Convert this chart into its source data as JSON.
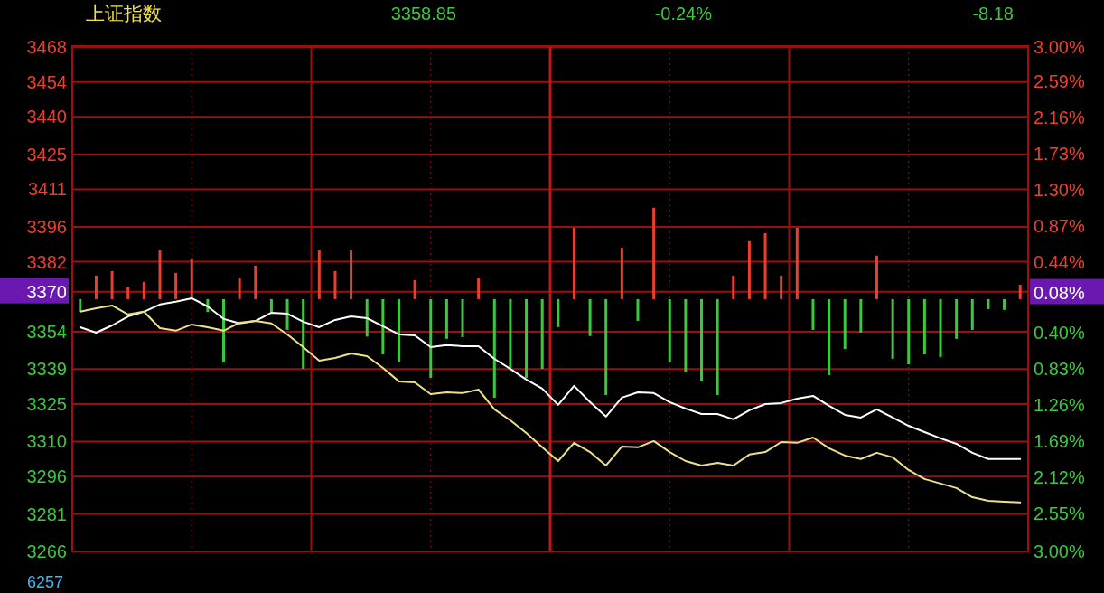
{
  "chart_data": {
    "type": "line",
    "title": "上证指数",
    "annotations": [
      "3358.85",
      "-0.24%",
      "-8.18",
      "6257"
    ],
    "categories": [
      null,
      null,
      null,
      null,
      null,
      null,
      null,
      null,
      null,
      null,
      null,
      null,
      null,
      null,
      null,
      null,
      null,
      null,
      null,
      null,
      null,
      null,
      null,
      null,
      null,
      null,
      null,
      null,
      null,
      null,
      null,
      null,
      null,
      null,
      null,
      null,
      null,
      null,
      null,
      null,
      null,
      null,
      null,
      null,
      null,
      null,
      null,
      null,
      null,
      null,
      null,
      null,
      null,
      null,
      null,
      null,
      null,
      null,
      null,
      null
    ],
    "ylim": [
      3266,
      3468
    ],
    "yticks": [
      3468,
      3454,
      3440,
      3425,
      3411,
      3396,
      3382,
      3370,
      3354,
      3339,
      3325,
      3310,
      3296,
      3281,
      3266
    ],
    "y2lim": [
      -3,
      3
    ],
    "y2ticks": [
      {
        "value": 3,
        "label": "3.00%"
      },
      {
        "value": 2.59,
        "label": "2.59%"
      },
      {
        "value": 2.16,
        "label": "2.16%"
      },
      {
        "value": 1.73,
        "label": "1.73%"
      },
      {
        "value": 1.3,
        "label": "1.30%"
      },
      {
        "value": 0.87,
        "label": "0.87%"
      },
      {
        "value": 0.44,
        "label": "0.44%"
      },
      {
        "value": 0.08,
        "label": "0.08%"
      },
      {
        "value": -0.4,
        "label": "0.40%"
      },
      {
        "value": -0.83,
        "label": "0.83%"
      },
      {
        "value": -1.26,
        "label": "1.26%"
      },
      {
        "value": -1.69,
        "label": "1.69%"
      },
      {
        "value": -2.12,
        "label": "2.12%"
      },
      {
        "value": -2.55,
        "label": "2.55%"
      },
      {
        "value": -3,
        "label": "3.00%"
      }
    ],
    "grid": true,
    "line_style": "solid",
    "series": [
      {
        "type": "bar",
        "base": [
          3367.03,
          3367.03,
          3367.03,
          3367.03,
          3367.03,
          3367.03,
          3367.03,
          3367.03,
          3367.03,
          3367.03,
          3367.03,
          3367.03,
          3367.03,
          3367.03,
          3367.03,
          3367.03,
          3367.03,
          3367.03,
          3367.03,
          3367.03,
          3367.03,
          3367.03,
          3367.03,
          3367.03,
          3367.03,
          3367.03,
          3367.03,
          3367.03,
          3367.03,
          3367.03,
          3367.03,
          3367.03,
          3367.03,
          3367.03,
          3367.03,
          3367.03,
          3367.03,
          3367.03,
          3367.03,
          3367.03,
          3367.03,
          3367.03,
          3367.03,
          3367.03,
          3367.03,
          3367.03,
          3367.03,
          3367.03,
          3367.03,
          3367.03,
          3367.03,
          3367.03,
          3367.03,
          3367.03,
          3367.03,
          3367.03,
          3367.03,
          3367.03,
          3367.03,
          3367.03
        ],
        "values": [
          -5.1,
          9.4,
          11.2,
          4.7,
          6.9,
          19.5,
          10.5,
          16.3,
          -5.1,
          -25.3,
          8.3,
          13.4,
          -5.1,
          -12.3,
          -27.9,
          19.5,
          11.2,
          19.5,
          -15,
          -22.1,
          -25,
          7.6,
          -31.5,
          -15.9,
          -15.2,
          8.3,
          -39.5,
          -27.5,
          -31.5,
          -27.9,
          -11.2,
          28.6,
          -14.8,
          -38.4,
          20.6,
          -8.7,
          36.6,
          -25,
          -29.3,
          -32.9,
          -38.4,
          9.4,
          23.2,
          26.4,
          9.4,
          28.6,
          -12.3,
          -30.4,
          -20,
          -13.4,
          17.4,
          -23.9,
          -26.1,
          -22.1,
          -23.2,
          -15.9,
          -12.3,
          -4,
          -4.3,
          5.8
        ],
        "colors": [
          "#3cc83c",
          "#e8402c",
          "#e8402c",
          "#e8402c",
          "#e8402c",
          "#e8402c",
          "#e8402c",
          "#e8402c",
          "#3cc83c",
          "#3cc83c",
          "#e8402c",
          "#e8402c",
          "#3cc83c",
          "#3cc83c",
          "#3cc83c",
          "#e8402c",
          "#e8402c",
          "#e8402c",
          "#3cc83c",
          "#3cc83c",
          "#3cc83c",
          "#e8402c",
          "#3cc83c",
          "#3cc83c",
          "#3cc83c",
          "#e8402c",
          "#3cc83c",
          "#3cc83c",
          "#3cc83c",
          "#3cc83c",
          "#3cc83c",
          "#e8402c",
          "#3cc83c",
          "#3cc83c",
          "#e8402c",
          "#3cc83c",
          "#e8402c",
          "#3cc83c",
          "#3cc83c",
          "#3cc83c",
          "#3cc83c",
          "#e8402c",
          "#e8402c",
          "#e8402c",
          "#e8402c",
          "#e8402c",
          "#3cc83c",
          "#3cc83c",
          "#3cc83c",
          "#3cc83c",
          "#e8402c",
          "#3cc83c",
          "#3cc83c",
          "#3cc83c",
          "#3cc83c",
          "#3cc83c",
          "#3cc83c",
          "#3cc83c",
          "#3cc83c",
          "#e8402c"
        ]
      },
      {
        "color": "#ffffff",
        "values": [
          3355.8,
          3353.6,
          3356.5,
          3360.1,
          3362.0,
          3364.9,
          3366.0,
          3367.4,
          3364.1,
          3359.1,
          3357.3,
          3358.3,
          3361.6,
          3361.2,
          3358.0,
          3355.8,
          3358.7,
          3360.1,
          3359.4,
          3356.2,
          3352.9,
          3352.5,
          3347.8,
          3348.6,
          3348.2,
          3348.2,
          3343.1,
          3339.1,
          3334.8,
          3331.2,
          3324.7,
          3332.3,
          3325.8,
          3320.0,
          3327.6,
          3329.7,
          3329.4,
          3325.8,
          3323.2,
          3321.0,
          3321.0,
          3318.9,
          3322.5,
          3325.0,
          3325.4,
          3327.2,
          3328.3,
          3324.3,
          3320.7,
          3319.6,
          3322.9,
          3319.6,
          3316.3,
          3313.8,
          3311.3,
          3309.1,
          3305.5,
          3303.0,
          3303.0,
          3303.0
        ]
      },
      {
        "color": "#eee08a",
        "values": [
          3362.0,
          3363.4,
          3364.5,
          3360.9,
          3362.0,
          3355.4,
          3354.4,
          3356.9,
          3355.8,
          3354.4,
          3357.6,
          3358.3,
          3357.3,
          3352.9,
          3347.8,
          3342.4,
          3343.5,
          3345.3,
          3344.2,
          3339.5,
          3334.1,
          3333.7,
          3329.0,
          3329.7,
          3329.4,
          3330.8,
          3322.9,
          3318.5,
          3313.4,
          3307.7,
          3302.2,
          3309.5,
          3305.8,
          3300.4,
          3308.0,
          3307.7,
          3310.2,
          3305.8,
          3302.2,
          3300.4,
          3301.5,
          3300.4,
          3304.8,
          3305.8,
          3309.8,
          3309.5,
          3311.6,
          3307.3,
          3304.4,
          3303.0,
          3305.5,
          3303.7,
          3298.6,
          3295.0,
          3293.2,
          3291.4,
          3287.7,
          3286.3,
          3285.9,
          3285.6
        ]
      }
    ]
  }
}
